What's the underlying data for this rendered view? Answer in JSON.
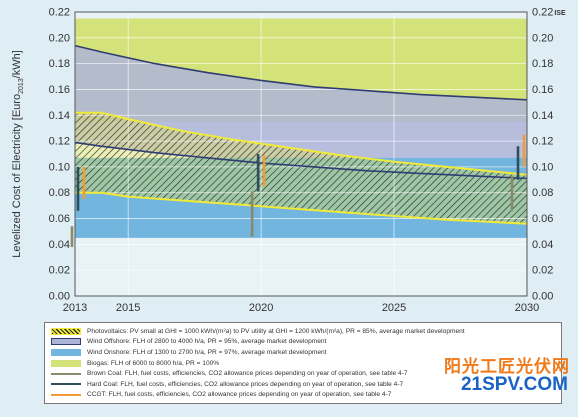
{
  "chart_data": {
    "type": "area",
    "title": "",
    "ylabel": "Levelized Cost of Electricity [Euro2013/kWh]",
    "ylabel_parts": [
      "Levelized Cost of Electricity [Euro",
      "2013",
      "/kWh]"
    ],
    "xlabel": "",
    "corner_label": "ISE",
    "xlim": [
      2013,
      2030
    ],
    "ylim": [
      0,
      0.22
    ],
    "x_ticks": [
      "2013",
      "2015",
      "2020",
      "2025",
      "2030"
    ],
    "y_ticks": [
      "0.00",
      "0.02",
      "0.04",
      "0.06",
      "0.08",
      "0.10",
      "0.12",
      "0.14",
      "0.16",
      "0.18",
      "0.20",
      "0.22"
    ],
    "grid": true,
    "legend_position": "bottom",
    "bands": [
      {
        "name": "Biogas",
        "legend": "Biogas: FLH of 6000 to 8000 h/a, PR = 100%",
        "color": "#d4e27a",
        "x": [
          2013,
          2030
        ],
        "lower": [
          0.135,
          0.135
        ],
        "upper": [
          0.215,
          0.215
        ]
      },
      {
        "name": "Wind Offshore",
        "legend": "Wind Offshore: FLH of 2800 to 4000 h/a, PR = 95%, average market development",
        "color": "#aeb4d8",
        "x": [
          2013,
          2014,
          2016,
          2018,
          2020,
          2022,
          2024,
          2026,
          2028,
          2030
        ],
        "lower": [
          0.119,
          0.116,
          0.111,
          0.107,
          0.103,
          0.1,
          0.097,
          0.095,
          0.093,
          0.091
        ],
        "upper": [
          0.194,
          0.189,
          0.18,
          0.173,
          0.167,
          0.162,
          0.159,
          0.156,
          0.154,
          0.152
        ]
      },
      {
        "name": "Wind Onshore",
        "legend": "Wind Onshore: FLH of 1300 to 2700 h/a, PR = 97%, average market development",
        "color": "#72b5df",
        "x": [
          2013,
          2030
        ],
        "lower": [
          0.045,
          0.045
        ],
        "upper": [
          0.107,
          0.107
        ]
      },
      {
        "name": "Photovoltaics",
        "legend": "Photovoltaics: PV small at GHI = 1000 kWh/(m²a) to PV utility at GHI = 1200 kWh/(m²a), PR = 85%, average market development",
        "color": "#f0ea3a",
        "hatched": true,
        "x": [
          2013,
          2014,
          2015,
          2017,
          2019,
          2021,
          2023,
          2025,
          2027,
          2029,
          2030
        ],
        "lower": [
          0.08,
          0.08,
          0.077,
          0.074,
          0.071,
          0.068,
          0.065,
          0.062,
          0.059,
          0.057,
          0.056
        ],
        "upper": [
          0.142,
          0.142,
          0.137,
          0.128,
          0.121,
          0.115,
          0.109,
          0.104,
          0.1,
          0.096,
          0.094
        ]
      }
    ],
    "ranges": [
      {
        "name": "Brown Coal",
        "legend": "Brown Coal: FLH, fuel costs, efficiencies, CO2 allowance prices depending on year of operation, see table 4-7",
        "color": "#8a8a6a",
        "x": [
          2013,
          2020,
          2030
        ],
        "low": [
          0.038,
          0.046,
          0.066
        ],
        "high": [
          0.054,
          0.081,
          0.093
        ]
      },
      {
        "name": "Hard Coal",
        "legend": "Hard Coal: FLH, fuel costs, efficiencies, CO2 allowance prices depending on year of operation, see table 4-7",
        "color": "#2f4f5a",
        "x": [
          2013,
          2020,
          2030
        ],
        "low": [
          0.066,
          0.081,
          0.09
        ],
        "high": [
          0.1,
          0.11,
          0.116
        ]
      },
      {
        "name": "CCGT",
        "legend": "CCGT: FLH, fuel costs, efficiencies, CO2 allowance prices depending on year of operation, see table 4-7",
        "color": "#f29a38",
        "x": [
          2013,
          2020,
          2030
        ],
        "low": [
          0.075,
          0.085,
          0.1
        ],
        "high": [
          0.1,
          0.109,
          0.125
        ]
      }
    ]
  },
  "legend_items": [
    {
      "key": "Photovoltaics",
      "style": "hatch",
      "color": "#f0ea3a",
      "text": "Photovoltaics: PV small at GHI = 1000 kWh/(m²a) to PV utility at GHI = 1200 kWh/(m²a), PR = 85%, average market development"
    },
    {
      "key": "Wind Offshore",
      "style": "box",
      "color": "#aeb4d8",
      "border": "#2f3d73",
      "text": "Wind Offshore: FLH of 2800 to 4000 h/a, PR = 95%, average market development"
    },
    {
      "key": "Wind Onshore",
      "style": "box",
      "color": "#72b5df",
      "border": "#72b5df",
      "text": "Wind Onshore: FLH of 1300 to 2700 h/a, PR = 97%, average market development"
    },
    {
      "key": "Biogas",
      "style": "box",
      "color": "#d4e27a",
      "border": "#d4e27a",
      "text": "Biogas: FLH of 6000 to 8000 h/a, PR = 100%"
    },
    {
      "key": "Brown Coal",
      "style": "line",
      "color": "#8a8a6a",
      "text": "Brown Coal: FLH, fuel costs, efficiencies, CO2 allowance prices depending on year of operation, see table 4-7"
    },
    {
      "key": "Hard Coal",
      "style": "line",
      "color": "#2f4f5a",
      "text": "Hard Coal: FLH, fuel costs, efficiencies, CO2 allowance prices depending on year of operation, see table 4-7"
    },
    {
      "key": "CCGT",
      "style": "line",
      "color": "#f29a38",
      "text": "CCGT: FLH, fuel costs, efficiencies, CO2 allowance prices depending on year of operation, see table 4-7"
    }
  ],
  "watermark": {
    "chinese": "阳光工匠光伏网",
    "url": "21SPV.COM"
  }
}
